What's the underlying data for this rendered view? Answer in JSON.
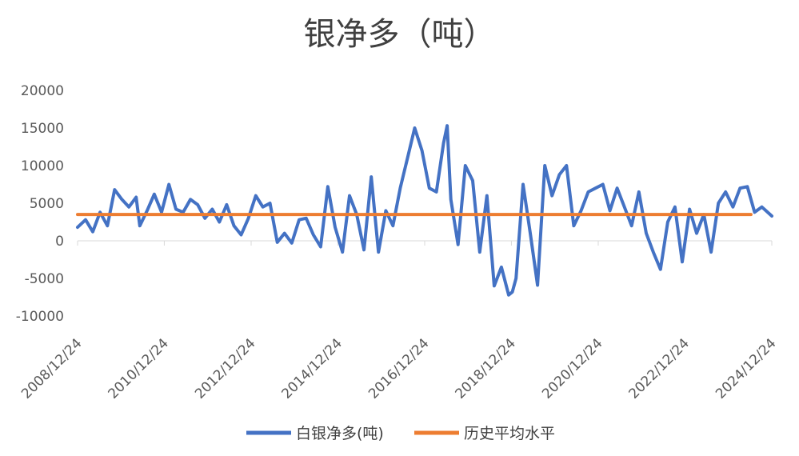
{
  "chart_data": {
    "type": "line",
    "title": "银净多（吨）",
    "xlabel": "",
    "ylabel": "",
    "x_ticks": [
      "2008/12/24",
      "2010/12/24",
      "2012/12/24",
      "2014/12/24",
      "2016/12/24",
      "2018/12/24",
      "2020/12/24",
      "2022/12/24",
      "2024/12/24"
    ],
    "xlim": [
      "2008-12-24",
      "2024-12-24"
    ],
    "ylim": [
      -10000,
      20000
    ],
    "y_ticks": [
      -10000,
      -5000,
      0,
      5000,
      10000,
      15000,
      20000
    ],
    "grid": false,
    "legend_position": "bottom",
    "series": [
      {
        "name": "白银净多(吨)",
        "color": "#4472C4",
        "points": [
          [
            "2008-12-24",
            1800
          ],
          [
            "2009-03-01",
            2800
          ],
          [
            "2009-05-01",
            1200
          ],
          [
            "2009-07-01",
            3800
          ],
          [
            "2009-09-01",
            2000
          ],
          [
            "2009-11-01",
            6800
          ],
          [
            "2010-01-01",
            5500
          ],
          [
            "2010-03-01",
            4500
          ],
          [
            "2010-05-01",
            5800
          ],
          [
            "2010-06-01",
            2000
          ],
          [
            "2010-08-01",
            4000
          ],
          [
            "2010-10-01",
            6200
          ],
          [
            "2010-12-01",
            3800
          ],
          [
            "2011-02-01",
            7500
          ],
          [
            "2011-04-01",
            4200
          ],
          [
            "2011-06-01",
            3800
          ],
          [
            "2011-08-01",
            5500
          ],
          [
            "2011-10-01",
            4800
          ],
          [
            "2011-12-01",
            3000
          ],
          [
            "2012-02-01",
            4200
          ],
          [
            "2012-04-01",
            2500
          ],
          [
            "2012-06-01",
            4800
          ],
          [
            "2012-08-01",
            2000
          ],
          [
            "2012-10-01",
            800
          ],
          [
            "2012-12-01",
            3000
          ],
          [
            "2013-02-01",
            6000
          ],
          [
            "2013-04-01",
            4500
          ],
          [
            "2013-06-01",
            5000
          ],
          [
            "2013-08-01",
            -200
          ],
          [
            "2013-10-01",
            1000
          ],
          [
            "2013-12-01",
            -300
          ],
          [
            "2014-02-01",
            2800
          ],
          [
            "2014-04-01",
            3000
          ],
          [
            "2014-06-01",
            800
          ],
          [
            "2014-08-01",
            -800
          ],
          [
            "2014-10-01",
            7200
          ],
          [
            "2014-12-01",
            1800
          ],
          [
            "2015-02-01",
            -1500
          ],
          [
            "2015-04-01",
            6000
          ],
          [
            "2015-06-01",
            3500
          ],
          [
            "2015-08-01",
            -1200
          ],
          [
            "2015-10-01",
            8500
          ],
          [
            "2015-12-01",
            -1500
          ],
          [
            "2016-02-01",
            4000
          ],
          [
            "2016-04-01",
            2000
          ],
          [
            "2016-06-01",
            7000
          ],
          [
            "2016-08-01",
            11000
          ],
          [
            "2016-10-01",
            15000
          ],
          [
            "2016-12-01",
            12000
          ],
          [
            "2017-02-01",
            7000
          ],
          [
            "2017-04-01",
            6500
          ],
          [
            "2017-06-01",
            13000
          ],
          [
            "2017-07-01",
            15300
          ],
          [
            "2017-08-01",
            5500
          ],
          [
            "2017-10-01",
            -500
          ],
          [
            "2017-12-01",
            10000
          ],
          [
            "2018-02-01",
            8000
          ],
          [
            "2018-04-01",
            -1500
          ],
          [
            "2018-06-01",
            6000
          ],
          [
            "2018-08-01",
            -6000
          ],
          [
            "2018-10-01",
            -3500
          ],
          [
            "2018-12-01",
            -7200
          ],
          [
            "2019-01-01",
            -6800
          ],
          [
            "2019-02-01",
            -5000
          ],
          [
            "2019-04-01",
            7500
          ],
          [
            "2019-06-01",
            1000
          ],
          [
            "2019-08-01",
            -5900
          ],
          [
            "2019-10-01",
            10000
          ],
          [
            "2019-12-01",
            6000
          ],
          [
            "2020-02-01",
            8800
          ],
          [
            "2020-04-01",
            10000
          ],
          [
            "2020-06-01",
            2000
          ],
          [
            "2020-08-01",
            4000
          ],
          [
            "2020-10-01",
            6500
          ],
          [
            "2020-12-01",
            7000
          ],
          [
            "2021-02-01",
            7500
          ],
          [
            "2021-04-01",
            4000
          ],
          [
            "2021-06-01",
            7000
          ],
          [
            "2021-08-01",
            4500
          ],
          [
            "2021-10-01",
            2000
          ],
          [
            "2021-12-01",
            6500
          ],
          [
            "2022-02-01",
            1000
          ],
          [
            "2022-04-01",
            -1500
          ],
          [
            "2022-06-01",
            -3800
          ],
          [
            "2022-08-01",
            2500
          ],
          [
            "2022-10-01",
            4500
          ],
          [
            "2022-12-01",
            -2800
          ],
          [
            "2023-02-01",
            4200
          ],
          [
            "2023-04-01",
            1000
          ],
          [
            "2023-06-01",
            3500
          ],
          [
            "2023-08-01",
            -1500
          ],
          [
            "2023-10-01",
            5000
          ],
          [
            "2023-12-01",
            6500
          ],
          [
            "2024-02-01",
            4500
          ],
          [
            "2024-04-01",
            7000
          ],
          [
            "2024-06-01",
            7200
          ],
          [
            "2024-08-01",
            3800
          ],
          [
            "2024-10-01",
            4500
          ],
          [
            "2024-12-24",
            3300
          ]
        ]
      },
      {
        "name": "历史平均水平",
        "color": "#ED7D31",
        "points": [
          [
            "2008-12-24",
            3500
          ],
          [
            "2024-07-01",
            3500
          ]
        ]
      }
    ]
  }
}
